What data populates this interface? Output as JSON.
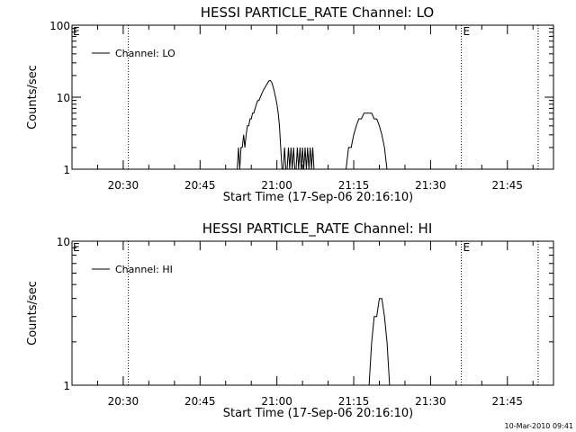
{
  "stamp": "10-Mar-2010 09:41",
  "chart_data": [
    {
      "type": "line",
      "title": "HESSI PARTICLE_RATE Channel: LO",
      "xlabel": "Start Time (17-Sep-06 20:16:10)",
      "ylabel": "Counts/sec",
      "yscale": "log",
      "ylim": [
        1,
        100
      ],
      "yticks": [
        {
          "v": 1,
          "label": "1"
        },
        {
          "v": 10,
          "label": "10"
        },
        {
          "v": 100,
          "label": "100"
        }
      ],
      "xlim": [
        "20:20",
        "21:54"
      ],
      "xticks": [
        {
          "t": "20:30",
          "label": "20:30"
        },
        {
          "t": "20:45",
          "label": "20:45"
        },
        {
          "t": "21:00",
          "label": "21:00"
        },
        {
          "t": "21:15",
          "label": "21:15"
        },
        {
          "t": "21:30",
          "label": "21:30"
        },
        {
          "t": "21:45",
          "label": "21:45"
        }
      ],
      "legend": {
        "label": "Channel: LO",
        "position": "top-left"
      },
      "markers": [
        {
          "t": "20:31",
          "label": ""
        },
        {
          "t": "21:36",
          "label": "E"
        },
        {
          "t": "21:51",
          "label": ""
        }
      ],
      "left_marker_label": "E",
      "series": [
        {
          "x": [
            "20:52:00",
            "20:52:15",
            "20:52:30",
            "20:52:45",
            "20:53:00",
            "20:53:15",
            "20:53:30",
            "20:53:45",
            "20:54:00",
            "20:54:15",
            "20:54:30",
            "20:54:45",
            "20:55:00",
            "20:55:15",
            "20:55:30",
            "20:55:45",
            "20:56:00",
            "20:56:15",
            "20:56:30",
            "20:56:45",
            "20:57:00",
            "20:57:15",
            "20:57:30",
            "20:57:45",
            "20:58:00",
            "20:58:15",
            "20:58:30",
            "20:58:45",
            "20:59:00",
            "20:59:15",
            "20:59:30",
            "20:59:45",
            "21:00:00",
            "21:00:15",
            "21:00:30",
            "21:00:45",
            "21:01:00",
            "21:01:15",
            "21:01:30",
            "21:01:45",
            "21:02:00",
            "21:02:15",
            "21:02:30",
            "21:02:45",
            "21:03:00",
            "21:03:15",
            "21:03:30",
            "21:03:45",
            "21:04:00",
            "21:04:15",
            "21:04:30",
            "21:04:45",
            "21:05:00",
            "21:05:15",
            "21:05:30",
            "21:05:45",
            "21:06:00",
            "21:06:15",
            "21:06:30",
            "21:06:45",
            "21:07:00",
            "21:07:15",
            "21:07:30"
          ],
          "y": [
            1,
            1,
            2,
            1,
            2,
            2,
            3,
            2,
            3,
            4,
            4,
            5,
            5,
            6,
            6,
            7,
            8,
            9,
            9,
            10,
            11,
            12,
            13,
            14,
            15,
            16,
            17,
            17,
            16,
            14,
            12,
            10,
            8,
            6,
            4,
            2,
            1,
            1,
            2,
            1,
            1,
            2,
            1,
            2,
            1,
            2,
            1,
            1,
            2,
            1,
            2,
            1,
            2,
            1,
            2,
            1,
            2,
            1,
            2,
            1,
            2,
            1,
            1
          ]
        },
        {
          "x": [
            "21:13:00",
            "21:13:30",
            "21:14:00",
            "21:14:30",
            "21:15:00",
            "21:15:30",
            "21:16:00",
            "21:16:30",
            "21:17:00",
            "21:17:30",
            "21:18:00",
            "21:18:30",
            "21:19:00",
            "21:19:30",
            "21:20:00",
            "21:20:30",
            "21:21:00",
            "21:21:30",
            "21:22:00"
          ],
          "y": [
            1,
            1,
            2,
            2,
            3,
            4,
            5,
            5,
            6,
            6,
            6,
            6,
            5,
            5,
            4,
            3,
            2,
            1,
            1
          ]
        }
      ]
    },
    {
      "type": "line",
      "title": "HESSI PARTICLE_RATE Channel: HI",
      "xlabel": "Start Time (17-Sep-06 20:16:10)",
      "ylabel": "Counts/sec",
      "yscale": "log",
      "ylim": [
        1,
        10
      ],
      "yticks": [
        {
          "v": 1,
          "label": "1"
        },
        {
          "v": 10,
          "label": "10"
        }
      ],
      "xlim": [
        "20:20",
        "21:54"
      ],
      "xticks": [
        {
          "t": "20:30",
          "label": "20:30"
        },
        {
          "t": "20:45",
          "label": "20:45"
        },
        {
          "t": "21:00",
          "label": "21:00"
        },
        {
          "t": "21:15",
          "label": "21:15"
        },
        {
          "t": "21:30",
          "label": "21:30"
        },
        {
          "t": "21:45",
          "label": "21:45"
        }
      ],
      "legend": {
        "label": "Channel: HI",
        "position": "top-left"
      },
      "markers": [
        {
          "t": "20:31",
          "label": ""
        },
        {
          "t": "21:36",
          "label": "E"
        },
        {
          "t": "21:51",
          "label": ""
        }
      ],
      "left_marker_label": "E",
      "series": [
        {
          "x": [
            "21:18:00",
            "21:18:30",
            "21:19:00",
            "21:19:30",
            "21:20:00",
            "21:20:30",
            "21:21:00",
            "21:21:30",
            "21:22:00"
          ],
          "y": [
            1,
            2,
            3,
            3,
            4,
            4,
            3,
            2,
            1
          ]
        }
      ]
    }
  ]
}
